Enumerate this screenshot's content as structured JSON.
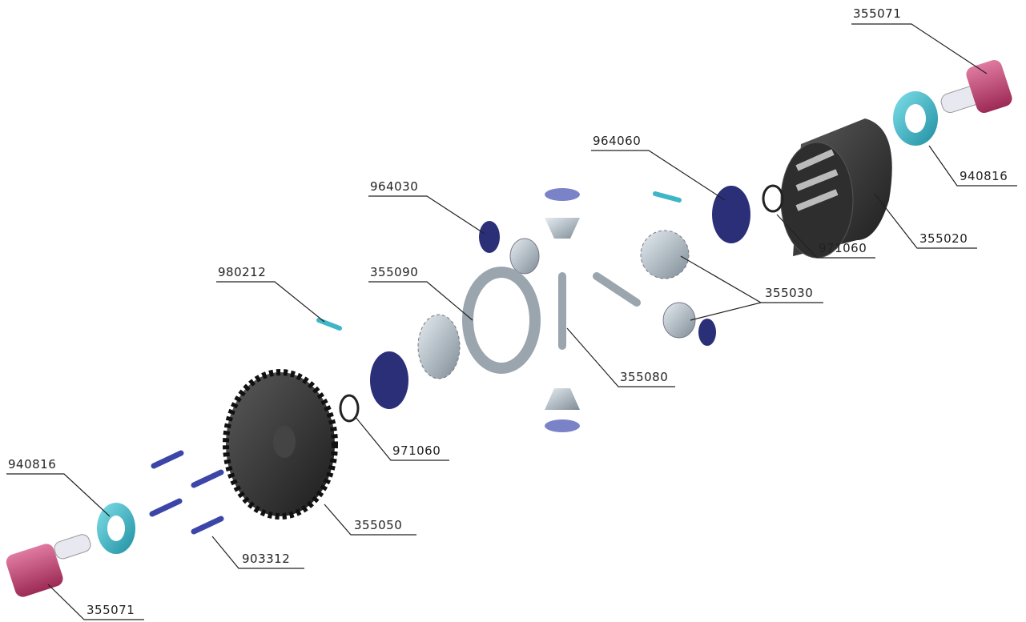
{
  "parts": [
    "355071",
    "940816",
    "355020",
    "971060",
    "964060",
    "355030",
    "964030",
    "355090",
    "980212",
    "355080",
    "971060",
    "355050",
    "940816",
    "903312",
    "355071"
  ]
}
